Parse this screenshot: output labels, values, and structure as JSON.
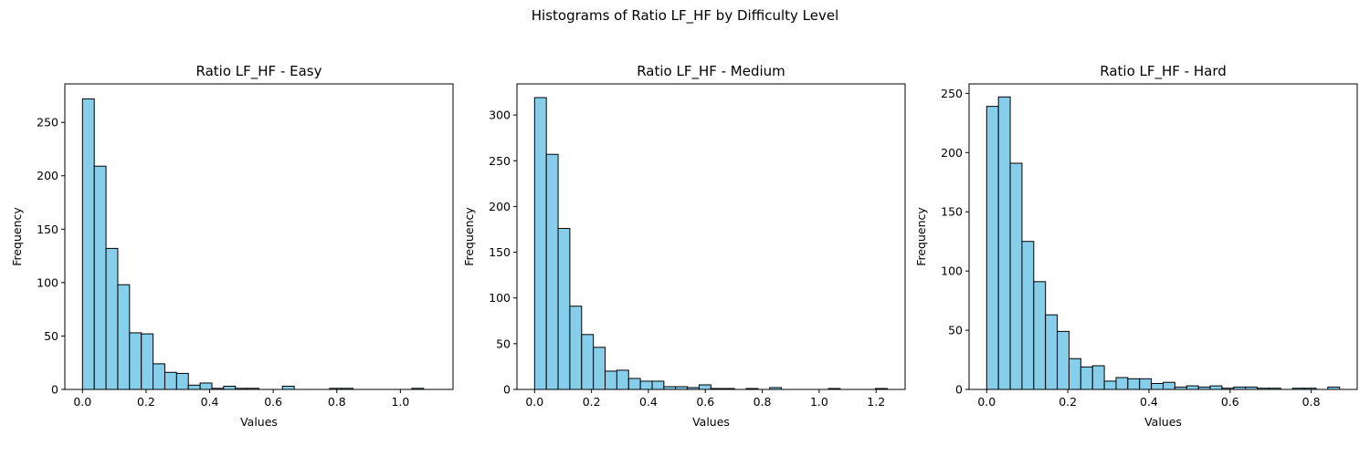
{
  "figure": {
    "suptitle": "Histograms of Ratio LF_HF by Difficulty Level",
    "bar_color": "#87ceeb",
    "edge_color": "#000000"
  },
  "chart_data": [
    {
      "type": "bar",
      "title": "Ratio LF_HF - Easy",
      "xlabel": "Values",
      "ylabel": "Frequency",
      "xlim": [
        -0.0555,
        1.1655
      ],
      "ylim": [
        0,
        286
      ],
      "xticks": [
        0.0,
        0.2,
        0.4,
        0.6,
        0.8,
        1.0
      ],
      "xtick_labels": [
        "0.0",
        "0.2",
        "0.4",
        "0.6",
        "0.8",
        "1.0"
      ],
      "yticks": [
        0,
        50,
        100,
        150,
        200,
        250
      ],
      "ytick_labels": [
        "0",
        "50",
        "100",
        "150",
        "200",
        "250"
      ],
      "bin_start": 0.0,
      "bin_width": 0.037,
      "values": [
        272,
        209,
        132,
        98,
        53,
        52,
        24,
        16,
        15,
        4,
        6,
        1,
        3,
        1,
        1,
        0,
        0,
        3,
        0,
        0,
        0,
        1,
        1,
        0,
        0,
        0,
        0,
        0,
        1,
        0
      ]
    },
    {
      "type": "bar",
      "title": "Ratio LF_HF - Medium",
      "xlabel": "Values",
      "ylabel": "Frequency",
      "xlim": [
        -0.062,
        1.302
      ],
      "ylim": [
        0,
        334
      ],
      "xticks": [
        0.0,
        0.2,
        0.4,
        0.6,
        0.8,
        1.0,
        1.2
      ],
      "xtick_labels": [
        "0.0",
        "0.2",
        "0.4",
        "0.6",
        "0.8",
        "1.0",
        "1.2"
      ],
      "yticks": [
        0,
        50,
        100,
        150,
        200,
        250,
        300
      ],
      "ytick_labels": [
        "0",
        "50",
        "100",
        "150",
        "200",
        "250",
        "300"
      ],
      "bin_start": 0.0,
      "bin_width": 0.0413,
      "values": [
        319,
        257,
        176,
        91,
        60,
        46,
        20,
        21,
        12,
        9,
        9,
        3,
        3,
        2,
        5,
        1,
        1,
        0,
        1,
        0,
        2,
        0,
        0,
        0,
        0,
        1,
        0,
        0,
        0,
        1
      ]
    },
    {
      "type": "bar",
      "title": "Ratio LF_HF - Hard",
      "xlabel": "Values",
      "ylabel": "Frequency",
      "xlim": [
        -0.0435,
        0.9135
      ],
      "ylim": [
        0,
        258
      ],
      "xticks": [
        0.0,
        0.2,
        0.4,
        0.6,
        0.8
      ],
      "xtick_labels": [
        "0.0",
        "0.2",
        "0.4",
        "0.6",
        "0.8"
      ],
      "yticks": [
        0,
        50,
        100,
        150,
        200,
        250
      ],
      "ytick_labels": [
        "0",
        "50",
        "100",
        "150",
        "200",
        "250"
      ],
      "bin_start": 0.0,
      "bin_width": 0.029,
      "values": [
        239,
        247,
        191,
        125,
        91,
        63,
        49,
        26,
        19,
        20,
        7,
        10,
        9,
        9,
        5,
        6,
        2,
        3,
        2,
        3,
        1,
        2,
        2,
        1,
        1,
        0,
        1,
        1,
        0,
        2
      ]
    }
  ]
}
